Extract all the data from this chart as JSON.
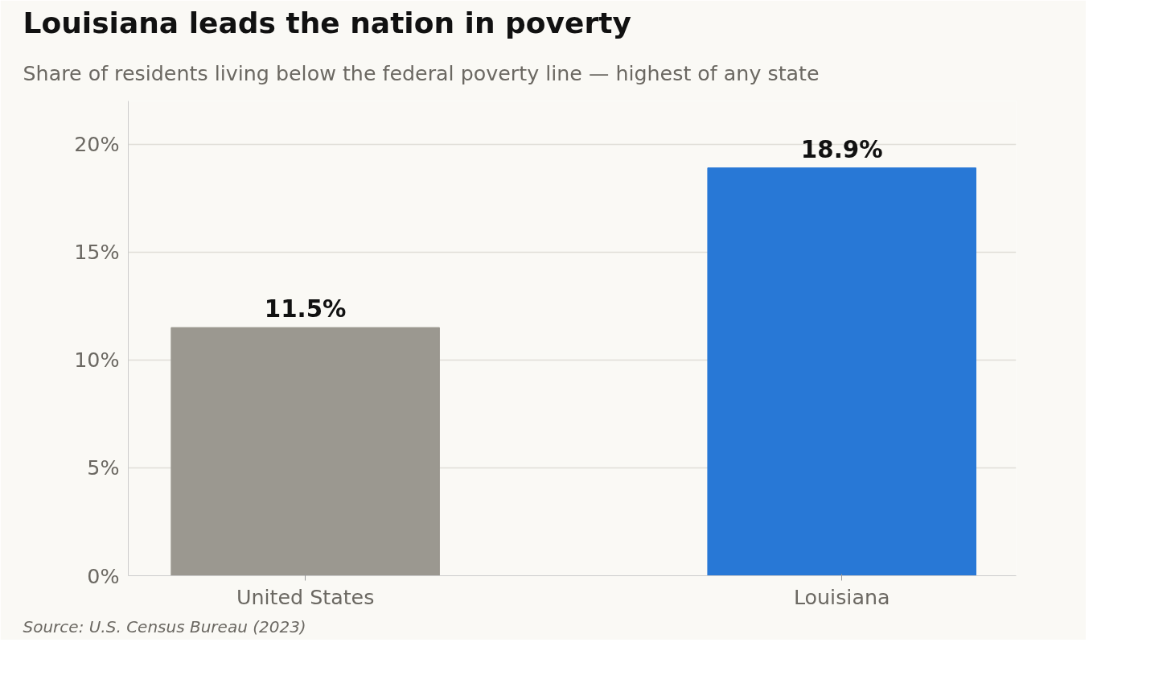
{
  "chart_data": {
    "type": "bar",
    "title": "Louisiana leads the nation in poverty",
    "subtitle": "Share of residents living below the federal poverty line — highest of any state",
    "categories": [
      "United States",
      "Louisiana"
    ],
    "values": [
      11.5,
      18.9
    ],
    "colors": [
      "#9b9890",
      "#2878d6"
    ],
    "ylim": [
      0,
      22
    ],
    "yticks": [
      {
        "value": 0,
        "label": "0%"
      },
      {
        "value": 5,
        "label": "5%"
      },
      {
        "value": 10,
        "label": "10%"
      },
      {
        "value": 15,
        "label": "15%"
      },
      {
        "value": 20,
        "label": "20%"
      }
    ],
    "value_labels": [
      "11.5%",
      "18.9%"
    ],
    "grid": "y",
    "annotations": [
      "Source: U.S. Census Bureau (2023)"
    ]
  }
}
